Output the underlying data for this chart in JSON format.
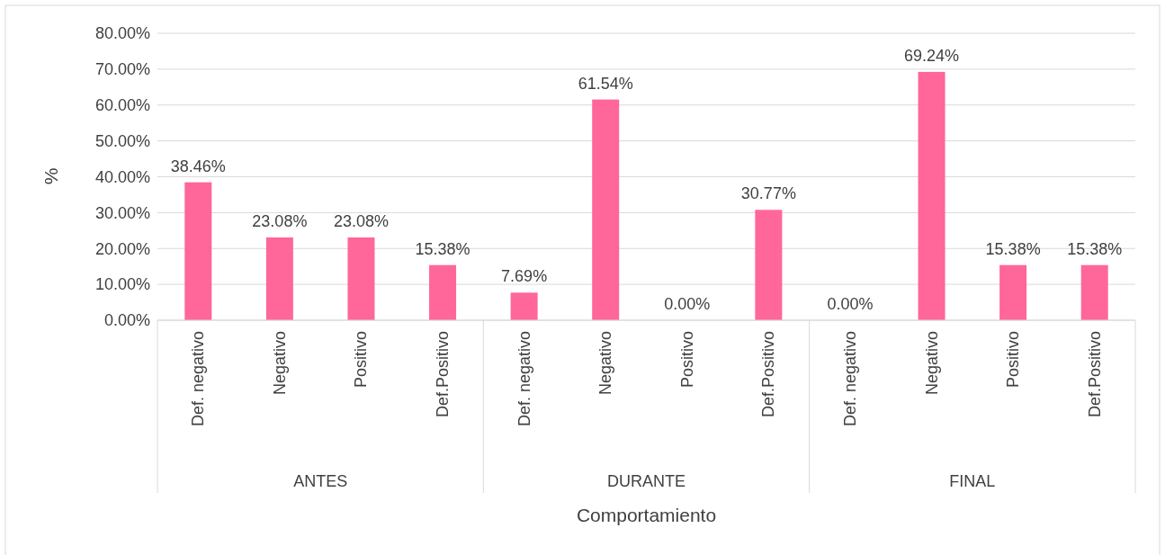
{
  "chart_data": {
    "type": "bar",
    "xlabel": "Comportamiento",
    "ylabel": "%",
    "categories": [
      "Def. negativo",
      "Negativo",
      "Positivo",
      "Def.Positivo",
      "Def. negativo",
      "Negativo",
      "Positivo",
      "Def.Positivo",
      "Def. negativo",
      "Negativo",
      "Positivo",
      "Def.Positivo"
    ],
    "values": [
      38.46,
      23.08,
      23.08,
      15.38,
      7.69,
      61.54,
      0,
      30.77,
      0,
      69.24,
      15.38,
      15.38
    ],
    "value_labels": [
      "38.46%",
      "23.08%",
      "23.08%",
      "15.38%",
      "7.69%",
      "61.54%",
      "0.00%",
      "30.77%",
      "0.00%",
      "69.24%",
      "15.38%",
      "15.38%"
    ],
    "color": "#ff6699",
    "ylim": [
      0,
      80
    ],
    "yticks": [
      {
        "value": 0,
        "label": "0.00%"
      },
      {
        "value": 10,
        "label": "10.00%"
      },
      {
        "value": 20,
        "label": "20.00%"
      },
      {
        "value": 30,
        "label": "30.00%"
      },
      {
        "value": 40,
        "label": "40.00%"
      },
      {
        "value": 50,
        "label": "50.00%"
      },
      {
        "value": 60,
        "label": "60.00%"
      },
      {
        "value": 70,
        "label": "70.00%"
      },
      {
        "value": 80,
        "label": "80.00%"
      }
    ],
    "grid": "y",
    "annotations": [
      "ANTES",
      "DURANTE",
      "FINAL"
    ]
  }
}
